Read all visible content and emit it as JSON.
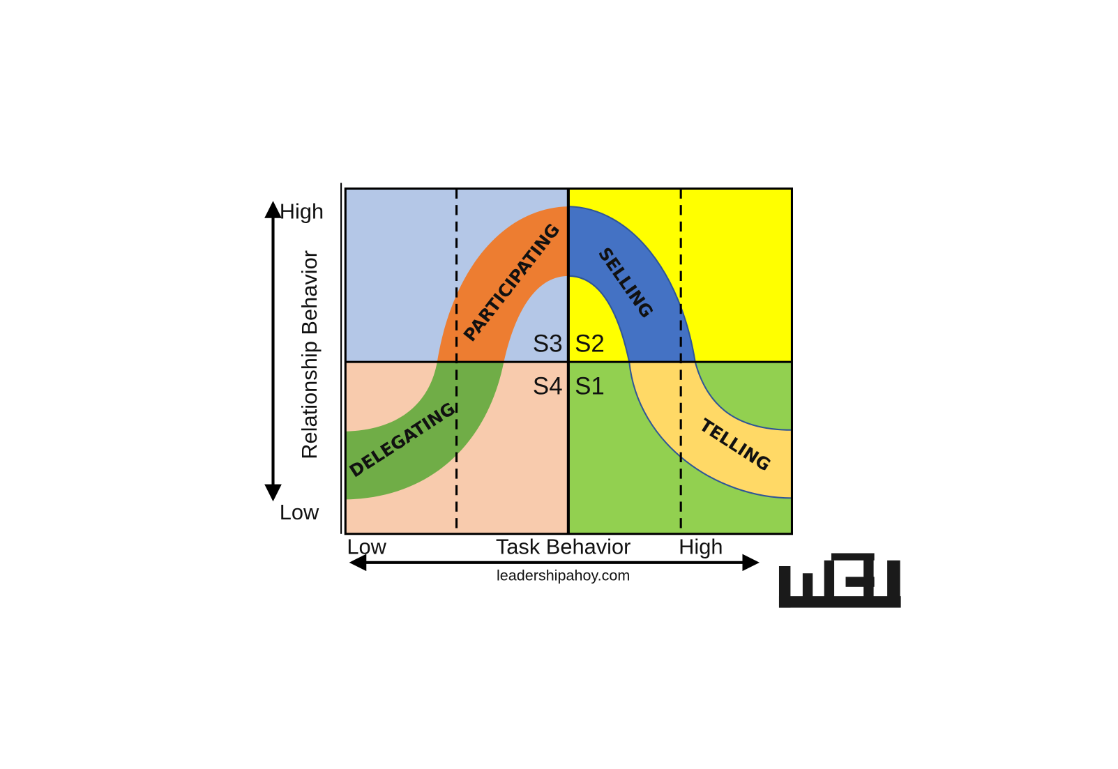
{
  "y_axis": {
    "label": "Relationship Behavior",
    "high": "High",
    "low": "Low"
  },
  "x_axis": {
    "label": "Task Behavior",
    "low": "Low",
    "high": "High"
  },
  "quadrants": [
    "S3",
    "S2",
    "S4",
    "S1"
  ],
  "styles": [
    "PARTICIPATING",
    "SELLING",
    "DELEGATING",
    "TELLING"
  ],
  "source": "leadershipahoy.com"
}
